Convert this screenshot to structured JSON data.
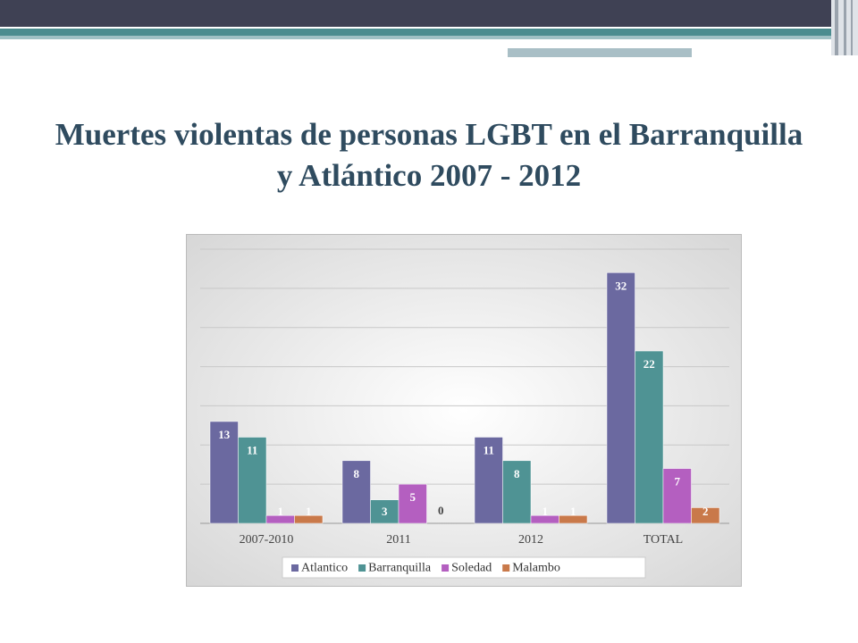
{
  "chart_data": {
    "type": "bar",
    "title": "Muertes violentas de personas LGBT en el Barranquilla y Atlántico  2007 - 2012",
    "categories": [
      "2007-2010",
      "2011",
      "2012",
      "TOTAL"
    ],
    "series": [
      {
        "name": "Atlantico",
        "color": "#6b69a0",
        "values": [
          13,
          8,
          11,
          32
        ]
      },
      {
        "name": "Barranquilla",
        "color": "#4f9394",
        "values": [
          11,
          3,
          8,
          22
        ]
      },
      {
        "name": "Soledad",
        "color": "#b45fc0",
        "values": [
          1,
          5,
          1,
          7
        ]
      },
      {
        "name": "Malambo",
        "color": "#c9794a",
        "values": [
          1,
          0,
          1,
          2
        ]
      }
    ],
    "ylim": [
      0,
      35
    ],
    "yticks": [
      0,
      5,
      10,
      15,
      20,
      25,
      30,
      35
    ],
    "grid": true,
    "legend": "bottom"
  }
}
